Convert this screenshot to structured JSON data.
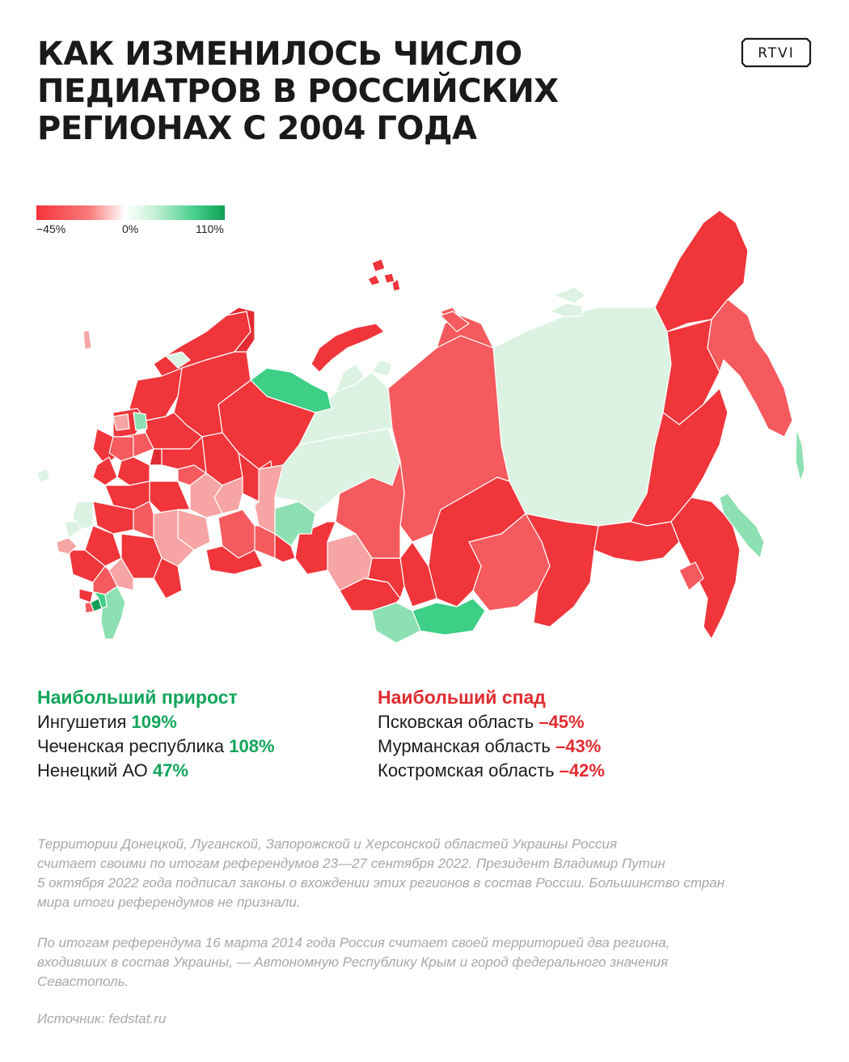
{
  "title_lines": [
    "КАК ИЗМЕНИЛОСЬ ЧИСЛО",
    "ПЕДИАТРОВ В РОССИЙСКИХ",
    "РЕГИОНАХ С 2004 ГОДА"
  ],
  "logo_text": "RTVI",
  "legend": {
    "min_label": "−45%",
    "mid_label": "0%",
    "max_label": "110%",
    "colors": [
      "#f5333b",
      "#f97a7a",
      "#ffffff",
      "#c9f1d8",
      "#46d08b",
      "#0f9e55"
    ]
  },
  "stats": {
    "growth": {
      "heading": "Наибольший прирост",
      "items": [
        {
          "region": "Ингушетия",
          "value": "109%"
        },
        {
          "region": "Чеченская республика",
          "value": "108%"
        },
        {
          "region": "Ненецкий АО",
          "value": "47%"
        }
      ]
    },
    "decline": {
      "heading": "Наибольший спад",
      "items": [
        {
          "region": "Псковская область",
          "value": "–45%"
        },
        {
          "region": "Мурманская область",
          "value": "–43%"
        },
        {
          "region": "Костромская область",
          "value": "–42%"
        }
      ]
    }
  },
  "notes": {
    "note1_lines": [
      "Территории Донецкой, Луганской, Запорожской и Херсонской областей Украины Россия",
      "считает своими по итогам референдумов 23—27 сентября 2022. Президент Владимир Путин",
      "5 октября 2022 года подписал законы о вхождении этих регионов в состав России. Большинство стран",
      "мира итоги референдумов не признали."
    ],
    "note2_lines": [
      "По итогам референдума 16 марта 2014 года Россия считает своей территорией два региона,",
      "входивших в состав Украины, — Автономную Республику Крым и город федерального значения",
      "Севастополь."
    ],
    "source": "Источник: fedstat.ru"
  },
  "map_colors": {
    "strong_decline": "#f0353b",
    "decline": "#f55a5e",
    "mild_decline": "#f7a4a4",
    "near_zero": "#dcf3e3",
    "growth": "#8de0b2",
    "strong_growth": "#3ccf85",
    "max_growth": "#0f9e55"
  }
}
